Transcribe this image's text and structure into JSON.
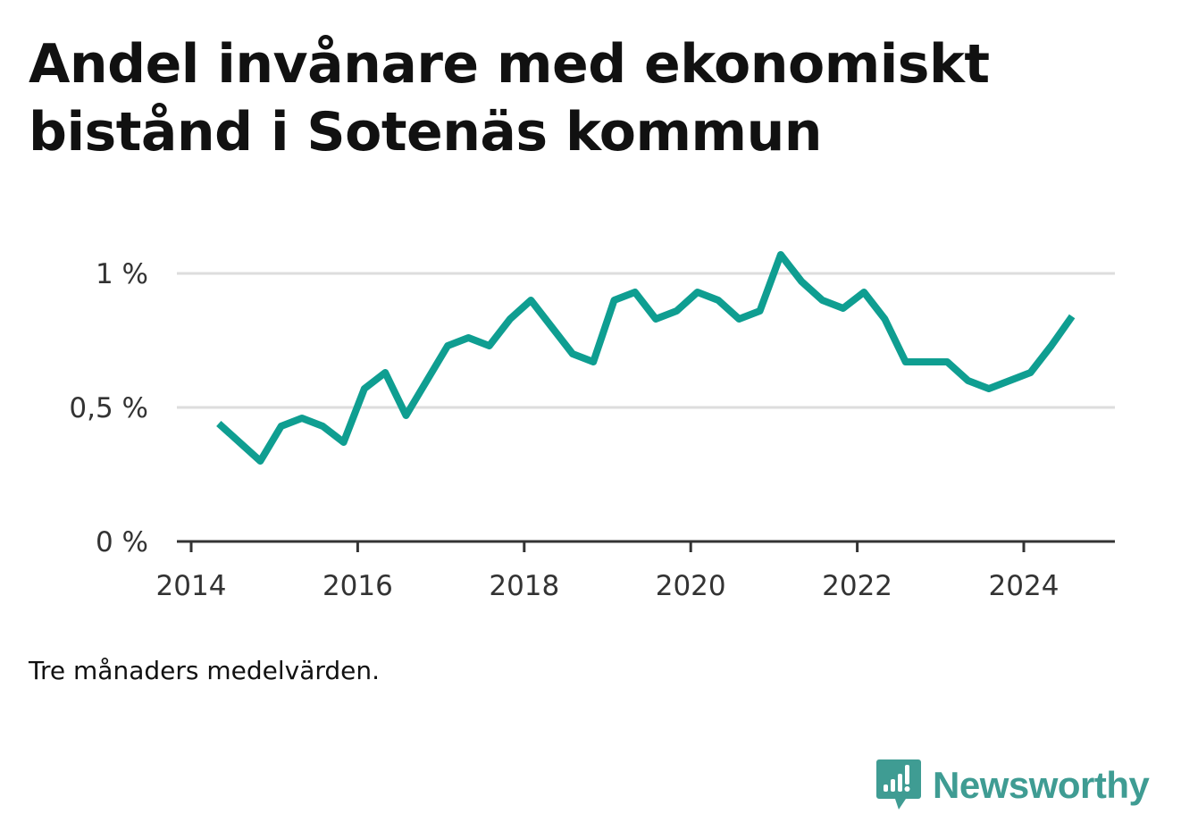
{
  "chart_data": {
    "type": "line",
    "title": "Andel invånare med ekonomiskt bistånd i Sotenäs kommun",
    "note": "Tre månaders medelvärden.",
    "x_range": [
      2014.0,
      2025.2
    ],
    "ylim": [
      0,
      1.15
    ],
    "y_ticks": [
      0,
      0.5,
      1
    ],
    "y_tick_labels": [
      "0 %",
      "0,5 %",
      "1 %"
    ],
    "x_ticks": [
      2014,
      2016,
      2018,
      2020,
      2022,
      2024
    ],
    "x_tick_labels": [
      "2014",
      "2016",
      "2018",
      "2020",
      "2022",
      "2024"
    ],
    "grid": true,
    "series": [
      {
        "name": "",
        "color": "#0f9e91",
        "x": [
          2014.33,
          2014.58,
          2014.83,
          2015.08,
          2015.33,
          2015.58,
          2015.83,
          2016.08,
          2016.33,
          2016.58,
          2016.83,
          2017.08,
          2017.33,
          2017.58,
          2017.83,
          2018.08,
          2018.33,
          2018.58,
          2018.83,
          2019.08,
          2019.33,
          2019.58,
          2019.83,
          2020.08,
          2020.33,
          2020.58,
          2020.83,
          2021.08,
          2021.33,
          2021.58,
          2021.83,
          2022.08,
          2022.33,
          2022.58,
          2022.83,
          2023.08,
          2023.33,
          2023.58,
          2023.83,
          2024.08,
          2024.33,
          2024.58
        ],
        "values": [
          0.44,
          0.37,
          0.3,
          0.43,
          0.46,
          0.43,
          0.37,
          0.57,
          0.63,
          0.47,
          0.6,
          0.73,
          0.76,
          0.73,
          0.83,
          0.9,
          0.8,
          0.7,
          0.67,
          0.9,
          0.93,
          0.83,
          0.86,
          0.93,
          0.9,
          0.83,
          0.86,
          1.07,
          0.97,
          0.9,
          0.87,
          0.93,
          0.83,
          0.67,
          0.67,
          0.67,
          0.6,
          0.57,
          0.6,
          0.63,
          0.73,
          0.84
        ]
      }
    ]
  },
  "brand": {
    "name": "Newsworthy",
    "color": "#3f9c93",
    "icon": "newsworthy-logo-icon"
  }
}
